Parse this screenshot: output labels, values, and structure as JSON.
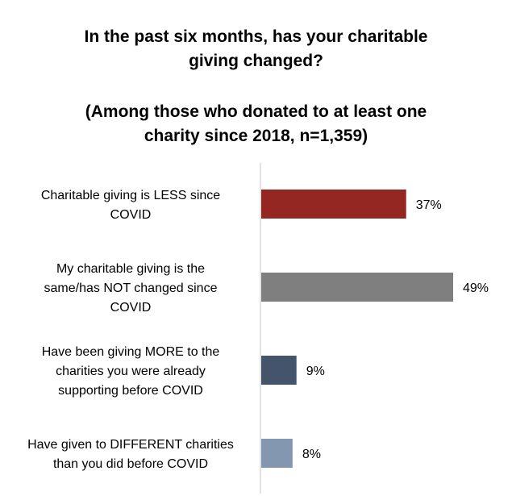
{
  "title": {
    "line1": "In the past six months, has your charitable",
    "line2": "giving changed?",
    "line3": "(Among those who donated to at least one",
    "line4": "charity since 2018, n=1,359)"
  },
  "chart_data": {
    "type": "bar",
    "orientation": "horizontal",
    "categories": [
      [
        "Charitable giving is LESS since",
        "COVID"
      ],
      [
        "My charitable giving is the",
        "same/has NOT changed since",
        "COVID"
      ],
      [
        "Have been giving MORE to the",
        "charities you were already",
        "supporting before COVID"
      ],
      [
        "Have given to DIFFERENT charities",
        "than you did before COVID"
      ]
    ],
    "values": [
      37,
      49,
      9,
      8
    ],
    "value_labels": [
      "37%",
      "49%",
      "9%",
      "8%"
    ],
    "colors": [
      "#952723",
      "#7f7f7f",
      "#44546a",
      "#8497b0"
    ],
    "xlim": [
      0,
      55
    ],
    "grid": false,
    "legend": "none"
  }
}
